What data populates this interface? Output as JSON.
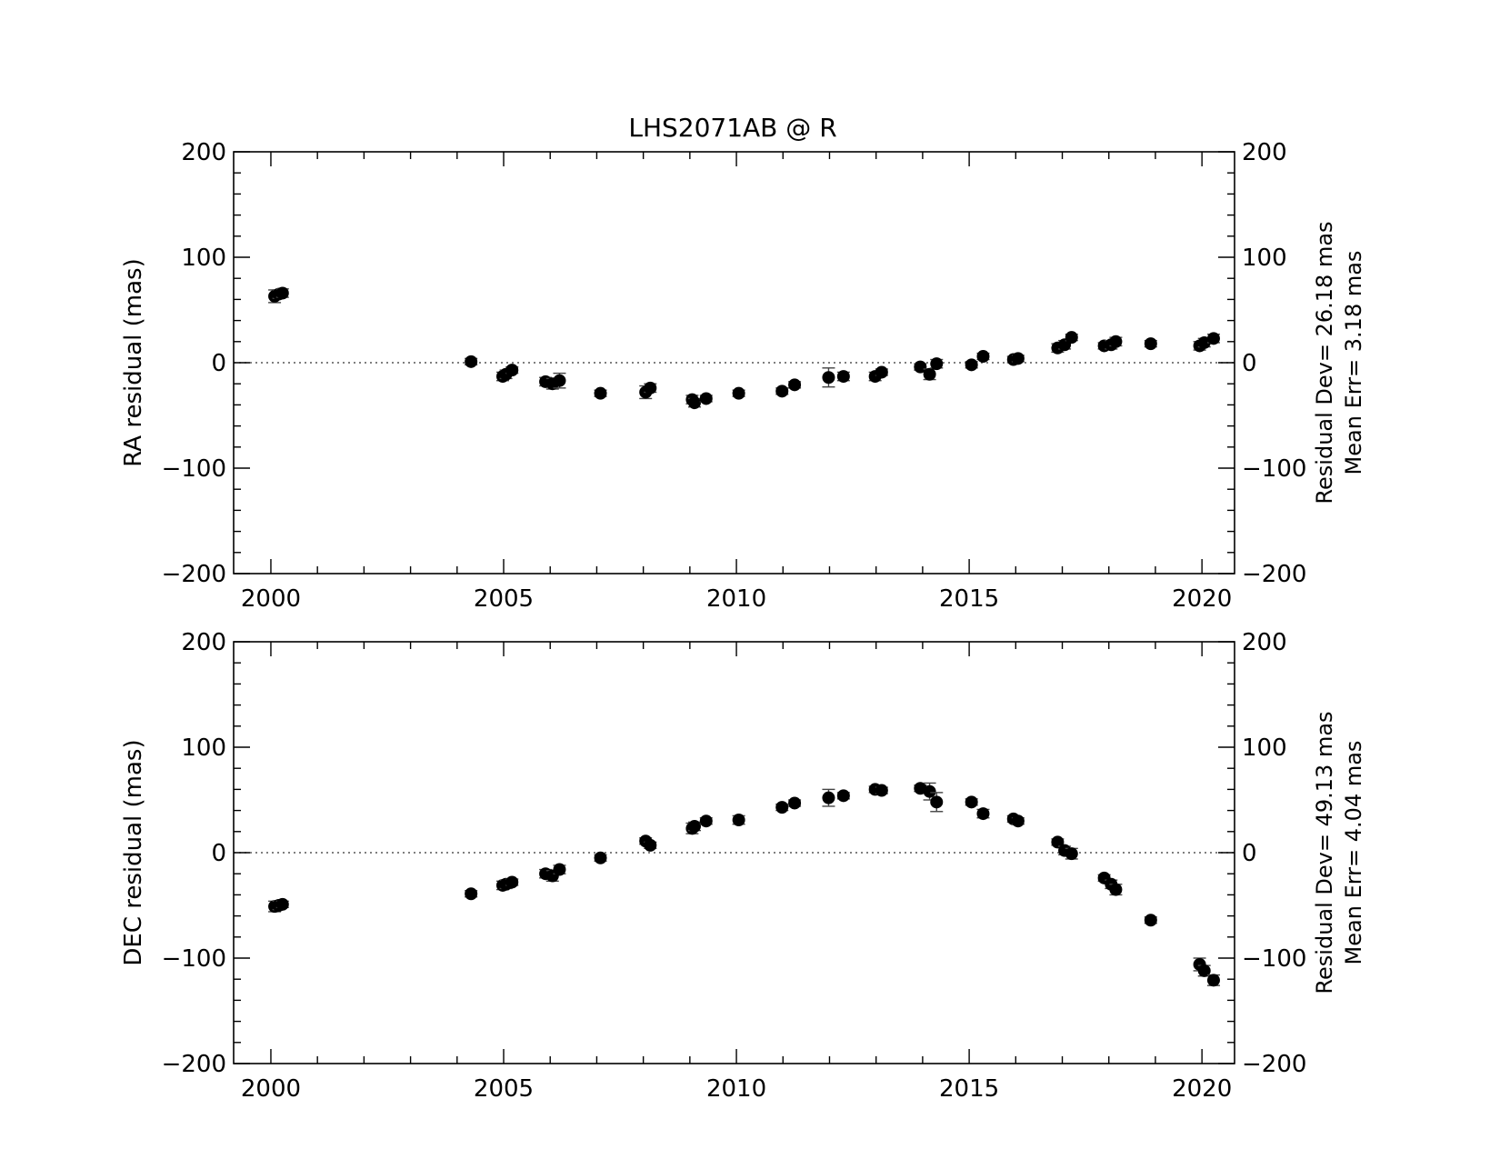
{
  "figure": {
    "title": "LHS2071AB @ R"
  },
  "chart_data": [
    {
      "type": "scatter",
      "panel": "top",
      "ylabel": "RA residual (mas)",
      "xlim": [
        1999.2,
        2020.7
      ],
      "ylim": [
        -200,
        200
      ],
      "x_ticks": [
        2000,
        2005,
        2010,
        2015,
        2020
      ],
      "x_tick_labels": [
        "2000",
        "2005",
        "2010",
        "2015",
        "2020"
      ],
      "y_ticks": [
        -200,
        -100,
        0,
        100,
        200
      ],
      "y_tick_labels": [
        "−200",
        "−100",
        "0",
        "100",
        "200"
      ],
      "zero_line": true,
      "stats": [
        "Residual Dev=  26.18 mas",
        "Mean  Err=  3.18 mas"
      ],
      "points": [
        {
          "x": 2000.08,
          "y": 63,
          "err": 6
        },
        {
          "x": 2000.17,
          "y": 65,
          "err": 4
        },
        {
          "x": 2000.25,
          "y": 66,
          "err": 4
        },
        {
          "x": 2004.3,
          "y": 1,
          "err": 3
        },
        {
          "x": 2004.98,
          "y": -13,
          "err": 4
        },
        {
          "x": 2005.05,
          "y": -11,
          "err": 4
        },
        {
          "x": 2005.18,
          "y": -7,
          "err": 3
        },
        {
          "x": 2005.9,
          "y": -18,
          "err": 4
        },
        {
          "x": 2006.05,
          "y": -20,
          "err": 5
        },
        {
          "x": 2006.2,
          "y": -17,
          "err": 7
        },
        {
          "x": 2007.08,
          "y": -29,
          "err": 3
        },
        {
          "x": 2008.05,
          "y": -28,
          "err": 6
        },
        {
          "x": 2008.15,
          "y": -24,
          "err": 4
        },
        {
          "x": 2009.05,
          "y": -35,
          "err": 4
        },
        {
          "x": 2009.1,
          "y": -38,
          "err": 4
        },
        {
          "x": 2009.35,
          "y": -34,
          "err": 3
        },
        {
          "x": 2010.05,
          "y": -29,
          "err": 3
        },
        {
          "x": 2010.98,
          "y": -27,
          "err": 3
        },
        {
          "x": 2011.25,
          "y": -21,
          "err": 3
        },
        {
          "x": 2011.98,
          "y": -14,
          "err": 9
        },
        {
          "x": 2012.3,
          "y": -13,
          "err": 4
        },
        {
          "x": 2012.98,
          "y": -13,
          "err": 4
        },
        {
          "x": 2013.12,
          "y": -9,
          "err": 3
        },
        {
          "x": 2013.95,
          "y": -4,
          "err": 3
        },
        {
          "x": 2014.15,
          "y": -11,
          "err": 5
        },
        {
          "x": 2014.3,
          "y": -1,
          "err": 4
        },
        {
          "x": 2015.05,
          "y": -2,
          "err": 3
        },
        {
          "x": 2015.3,
          "y": 6,
          "err": 3
        },
        {
          "x": 2015.95,
          "y": 3,
          "err": 3
        },
        {
          "x": 2016.05,
          "y": 4,
          "err": 3
        },
        {
          "x": 2016.9,
          "y": 14,
          "err": 4
        },
        {
          "x": 2017.05,
          "y": 17,
          "err": 4
        },
        {
          "x": 2017.2,
          "y": 24,
          "err": 3
        },
        {
          "x": 2017.9,
          "y": 16,
          "err": 3
        },
        {
          "x": 2018.05,
          "y": 17,
          "err": 4
        },
        {
          "x": 2018.15,
          "y": 20,
          "err": 4
        },
        {
          "x": 2018.9,
          "y": 18,
          "err": 3
        },
        {
          "x": 2019.95,
          "y": 16,
          "err": 4
        },
        {
          "x": 2020.05,
          "y": 19,
          "err": 4
        },
        {
          "x": 2020.25,
          "y": 23,
          "err": 4
        }
      ]
    },
    {
      "type": "scatter",
      "panel": "bottom",
      "ylabel": "DEC residual (mas)",
      "xlim": [
        1999.2,
        2020.7
      ],
      "ylim": [
        -200,
        200
      ],
      "x_ticks": [
        2000,
        2005,
        2010,
        2015,
        2020
      ],
      "x_tick_labels": [
        "2000",
        "2005",
        "2010",
        "2015",
        "2020"
      ],
      "y_ticks": [
        -200,
        -100,
        0,
        100,
        200
      ],
      "y_tick_labels": [
        "−200",
        "−100",
        "0",
        "100",
        "200"
      ],
      "zero_line": true,
      "stats": [
        "Residual Dev=  49.13 mas",
        "Mean  Err=  4.04 mas"
      ],
      "points": [
        {
          "x": 2000.08,
          "y": -51,
          "err": 5
        },
        {
          "x": 2000.17,
          "y": -50,
          "err": 4
        },
        {
          "x": 2000.25,
          "y": -49,
          "err": 3
        },
        {
          "x": 2004.3,
          "y": -39,
          "err": 3
        },
        {
          "x": 2004.98,
          "y": -31,
          "err": 4
        },
        {
          "x": 2005.05,
          "y": -30,
          "err": 4
        },
        {
          "x": 2005.18,
          "y": -28,
          "err": 3
        },
        {
          "x": 2005.9,
          "y": -20,
          "err": 4
        },
        {
          "x": 2006.05,
          "y": -22,
          "err": 5
        },
        {
          "x": 2006.2,
          "y": -16,
          "err": 4
        },
        {
          "x": 2007.08,
          "y": -5,
          "err": 3
        },
        {
          "x": 2008.05,
          "y": 11,
          "err": 3
        },
        {
          "x": 2008.15,
          "y": 7,
          "err": 3
        },
        {
          "x": 2009.05,
          "y": 23,
          "err": 5
        },
        {
          "x": 2009.1,
          "y": 25,
          "err": 4
        },
        {
          "x": 2009.35,
          "y": 30,
          "err": 3
        },
        {
          "x": 2010.05,
          "y": 31,
          "err": 4
        },
        {
          "x": 2010.98,
          "y": 43,
          "err": 3
        },
        {
          "x": 2011.25,
          "y": 47,
          "err": 3
        },
        {
          "x": 2011.98,
          "y": 52,
          "err": 8
        },
        {
          "x": 2012.3,
          "y": 54,
          "err": 3
        },
        {
          "x": 2012.98,
          "y": 60,
          "err": 3
        },
        {
          "x": 2013.12,
          "y": 59,
          "err": 3
        },
        {
          "x": 2013.95,
          "y": 61,
          "err": 3
        },
        {
          "x": 2014.15,
          "y": 58,
          "err": 8
        },
        {
          "x": 2014.3,
          "y": 48,
          "err": 9
        },
        {
          "x": 2015.05,
          "y": 48,
          "err": 3
        },
        {
          "x": 2015.3,
          "y": 37,
          "err": 4
        },
        {
          "x": 2015.95,
          "y": 32,
          "err": 3
        },
        {
          "x": 2016.05,
          "y": 30,
          "err": 3
        },
        {
          "x": 2016.9,
          "y": 10,
          "err": 3
        },
        {
          "x": 2017.05,
          "y": 2,
          "err": 4
        },
        {
          "x": 2017.2,
          "y": -1,
          "err": 5
        },
        {
          "x": 2017.9,
          "y": -24,
          "err": 3
        },
        {
          "x": 2018.05,
          "y": -30,
          "err": 4
        },
        {
          "x": 2018.15,
          "y": -35,
          "err": 5
        },
        {
          "x": 2018.9,
          "y": -64,
          "err": 3
        },
        {
          "x": 2019.95,
          "y": -106,
          "err": 6
        },
        {
          "x": 2020.05,
          "y": -112,
          "err": 5
        },
        {
          "x": 2020.25,
          "y": -121,
          "err": 5
        }
      ]
    }
  ]
}
